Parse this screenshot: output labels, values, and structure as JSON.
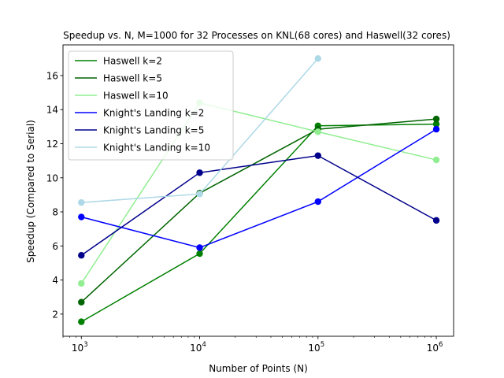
{
  "chart_data": {
    "type": "line",
    "title": "Speedup vs. N, M=1000 for 32 Processes on KNL(68 cores) and Haswell(32 cores)",
    "xlabel": "Number of Points (N)",
    "ylabel": "Speedup (Compared to Serial)",
    "xscale": "log",
    "xlim": [
      700,
      1400000
    ],
    "ylim": [
      0.7,
      17.8
    ],
    "x": [
      1000,
      10000,
      100000,
      1000000
    ],
    "x_tick_labels": [
      {
        "base": "10",
        "exp": "3"
      },
      {
        "base": "10",
        "exp": "4"
      },
      {
        "base": "10",
        "exp": "5"
      },
      {
        "base": "10",
        "exp": "6"
      }
    ],
    "y_ticks": [
      2,
      4,
      6,
      8,
      10,
      12,
      14,
      16
    ],
    "grid": false,
    "legend_position": "top-left",
    "series": [
      {
        "name": "Haswell k=2",
        "color": "#008000",
        "values": [
          1.55,
          5.55,
          13.05,
          13.15
        ]
      },
      {
        "name": "Haswell k=5",
        "color": "#006400",
        "values": [
          2.7,
          9.1,
          12.85,
          13.45
        ]
      },
      {
        "name": "Haswell k=10",
        "color": "#90ee90",
        "values": [
          3.8,
          14.4,
          12.7,
          11.05
        ]
      },
      {
        "name": "Knight's Landing k=2",
        "color": "#0000ff",
        "values": [
          7.7,
          5.9,
          8.6,
          12.85
        ]
      },
      {
        "name": "Knight's Landing k=5",
        "color": "#00008b",
        "values": [
          5.45,
          10.3,
          11.3,
          7.5
        ]
      },
      {
        "name": "Knight's Landing k=10",
        "color": "#add8e6",
        "values": [
          8.55,
          9.05,
          null,
          null
        ],
        "values_full": [
          8.55,
          9.05,
          17.0,
          null
        ]
      }
    ]
  }
}
